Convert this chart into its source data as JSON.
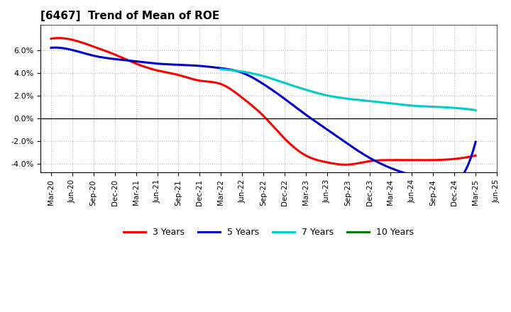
{
  "title": "[6467]  Trend of Mean of ROE",
  "background_color": "#ffffff",
  "plot_bg_color": "#ffffff",
  "grid_color": "#bbbbbb",
  "ylim": [
    -0.048,
    0.082
  ],
  "yticks": [
    -0.04,
    -0.02,
    0.0,
    0.02,
    0.04,
    0.06
  ],
  "x_labels": [
    "Mar-20",
    "Jun-20",
    "Sep-20",
    "Dec-20",
    "Mar-21",
    "Jun-21",
    "Sep-21",
    "Dec-21",
    "Mar-22",
    "Jun-22",
    "Sep-22",
    "Dec-22",
    "Mar-23",
    "Jun-23",
    "Sep-23",
    "Dec-23",
    "Mar-24",
    "Jun-24",
    "Sep-24",
    "Dec-24",
    "Mar-25",
    "Jun-25"
  ],
  "series": {
    "3 Years": {
      "color": "#ff0000",
      "x": [
        0,
        1,
        2,
        3,
        4,
        5,
        6,
        7,
        8,
        9,
        10,
        11,
        12,
        13,
        14,
        15,
        16,
        17,
        18,
        19,
        20
      ],
      "y": [
        0.07,
        0.069,
        0.063,
        0.056,
        0.048,
        0.042,
        0.038,
        0.033,
        0.03,
        0.018,
        0.002,
        -0.018,
        -0.033,
        -0.039,
        -0.041,
        -0.038,
        -0.037,
        -0.037,
        -0.037,
        -0.036,
        -0.033
      ]
    },
    "5 Years": {
      "color": "#0000cc",
      "x": [
        0,
        1,
        2,
        3,
        4,
        5,
        6,
        7,
        8,
        9,
        10,
        11,
        12,
        13,
        14,
        15,
        16,
        17,
        18,
        19,
        20
      ],
      "y": [
        0.062,
        0.06,
        0.055,
        0.052,
        0.05,
        0.048,
        0.047,
        0.046,
        0.044,
        0.04,
        0.03,
        0.017,
        0.003,
        -0.01,
        -0.023,
        -0.035,
        -0.044,
        -0.05,
        -0.054,
        -0.057,
        -0.021
      ]
    },
    "7 Years": {
      "color": "#00cccc",
      "x": [
        8,
        9,
        10,
        11,
        12,
        13,
        14,
        15,
        16,
        17,
        18,
        19,
        20
      ],
      "y": [
        0.043,
        0.041,
        0.037,
        0.031,
        0.025,
        0.02,
        0.017,
        0.015,
        0.013,
        0.011,
        0.01,
        0.009,
        0.007
      ]
    },
    "10 Years": {
      "color": "#007700",
      "x": [],
      "y": []
    }
  },
  "legend_order": [
    "3 Years",
    "5 Years",
    "7 Years",
    "10 Years"
  ]
}
